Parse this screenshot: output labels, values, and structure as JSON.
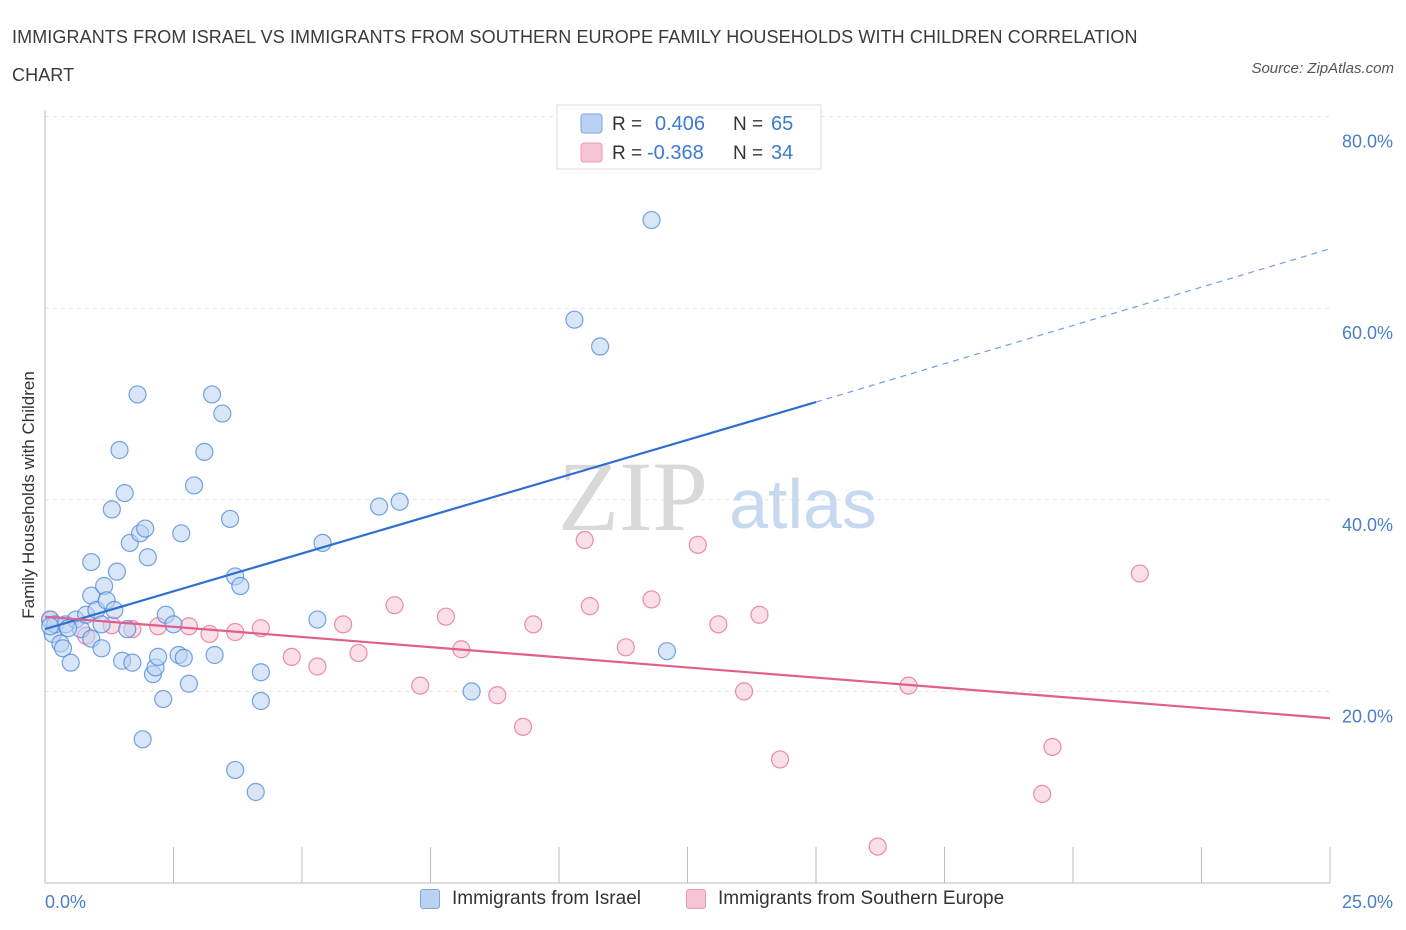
{
  "title": "IMMIGRANTS FROM ISRAEL VS IMMIGRANTS FROM SOUTHERN EUROPE FAMILY HOUSEHOLDS WITH CHILDREN CORRELATION CHART",
  "source": "Source: ZipAtlas.com",
  "watermark": {
    "zip": "ZIP",
    "atlas": "atlas"
  },
  "chart_data": {
    "type": "scatter",
    "title": "IMMIGRANTS FROM ISRAEL VS IMMIGRANTS FROM SOUTHERN EUROPE FAMILY HOUSEHOLDS WITH CHILDREN CORRELATION CHART",
    "xlabel": "",
    "ylabel": "Family Households with Children",
    "xlim": [
      0,
      25
    ],
    "ylim": [
      0,
      80
    ],
    "x_tick_labels": [
      "0.0%",
      "25.0%"
    ],
    "y_ticks": [
      20,
      40,
      60,
      80
    ],
    "y_tick_labels": [
      "20.0%",
      "40.0%",
      "60.0%",
      "80.0%"
    ],
    "grid": true,
    "legend_position": "top-center",
    "stats": [
      {
        "r_label": "R =",
        "r_value": "0.406",
        "n_label": "N =",
        "n_value": "65"
      },
      {
        "r_label": "R =",
        "r_value": "-0.368",
        "n_label": "N =",
        "n_value": "34"
      }
    ],
    "series": [
      {
        "name": "Immigrants from Israel",
        "color": "#4a86d8",
        "fill": "#b9d2f2",
        "trend": {
          "x1": 0,
          "y1": 26.5,
          "x2": 15,
          "y2": 50.2,
          "dash_x2": 25,
          "dash_y2": 66.2
        },
        "points": [
          [
            0.1,
            27.5
          ],
          [
            0.15,
            26
          ],
          [
            0.2,
            27
          ],
          [
            0.3,
            25
          ],
          [
            0.35,
            24.5
          ],
          [
            0.4,
            27
          ],
          [
            0.5,
            23
          ],
          [
            0.6,
            27.5
          ],
          [
            0.7,
            26.5
          ],
          [
            0.8,
            28
          ],
          [
            0.9,
            30
          ],
          [
            0.9,
            25.5
          ],
          [
            0.9,
            33.5
          ],
          [
            1.0,
            28.5
          ],
          [
            1.1,
            27
          ],
          [
            1.1,
            24.5
          ],
          [
            1.15,
            31
          ],
          [
            1.2,
            29.5
          ],
          [
            1.3,
            39
          ],
          [
            1.35,
            28.5
          ],
          [
            1.4,
            32.5
          ],
          [
            1.45,
            45.2
          ],
          [
            1.5,
            23.2
          ],
          [
            1.55,
            40.7
          ],
          [
            1.6,
            26.5
          ],
          [
            1.65,
            35.5
          ],
          [
            1.7,
            23
          ],
          [
            1.8,
            51
          ],
          [
            1.85,
            36.5
          ],
          [
            1.9,
            15
          ],
          [
            1.95,
            37
          ],
          [
            2.0,
            34
          ],
          [
            2.1,
            21.8
          ],
          [
            2.15,
            22.5
          ],
          [
            2.2,
            23.6
          ],
          [
            2.3,
            19.2
          ],
          [
            2.35,
            28
          ],
          [
            2.5,
            27
          ],
          [
            2.6,
            23.8
          ],
          [
            2.65,
            36.5
          ],
          [
            2.7,
            23.5
          ],
          [
            2.8,
            20.8
          ],
          [
            2.9,
            41.5
          ],
          [
            3.1,
            45
          ],
          [
            3.25,
            51
          ],
          [
            3.3,
            23.8
          ],
          [
            3.45,
            49
          ],
          [
            3.6,
            38
          ],
          [
            3.7,
            32
          ],
          [
            3.7,
            11.8
          ],
          [
            3.8,
            31
          ],
          [
            4.1,
            9.5
          ],
          [
            4.2,
            19
          ],
          [
            4.2,
            22
          ],
          [
            5.3,
            27.5
          ],
          [
            5.4,
            35.5
          ],
          [
            6.5,
            39.3
          ],
          [
            6.9,
            39.8
          ],
          [
            8.3,
            20
          ],
          [
            10.3,
            58.8
          ],
          [
            10.8,
            56
          ],
          [
            11.8,
            69.2
          ],
          [
            12.1,
            24.2
          ],
          [
            0.1,
            26.8
          ],
          [
            0.45,
            26.6
          ]
        ]
      },
      {
        "name": "Immigrants from Southern Europe",
        "color": "#e46a96",
        "fill": "#f6c4d4",
        "trend": {
          "x1": 0,
          "y1": 27.8,
          "x2": 25,
          "y2": 17.2
        },
        "points": [
          [
            0.1,
            27.5
          ],
          [
            0.8,
            25.8
          ],
          [
            1.3,
            26.9
          ],
          [
            1.7,
            26.5
          ],
          [
            2.2,
            26.8
          ],
          [
            2.8,
            26.8
          ],
          [
            3.2,
            26
          ],
          [
            3.7,
            26.2
          ],
          [
            4.2,
            26.6
          ],
          [
            4.8,
            23.6
          ],
          [
            5.3,
            22.6
          ],
          [
            5.8,
            27
          ],
          [
            6.1,
            24
          ],
          [
            6.8,
            29
          ],
          [
            7.3,
            20.6
          ],
          [
            7.8,
            27.8
          ],
          [
            8.1,
            24.4
          ],
          [
            8.8,
            19.6
          ],
          [
            9.3,
            16.3
          ],
          [
            9.5,
            27
          ],
          [
            10.5,
            35.8
          ],
          [
            10.6,
            28.9
          ],
          [
            11.3,
            24.6
          ],
          [
            11.8,
            29.6
          ],
          [
            12.7,
            35.3
          ],
          [
            13.1,
            27
          ],
          [
            13.6,
            20
          ],
          [
            13.9,
            28
          ],
          [
            14.3,
            12.9
          ],
          [
            16.2,
            3.8
          ],
          [
            16.8,
            20.6
          ],
          [
            19.4,
            9.3
          ],
          [
            19.6,
            14.2
          ],
          [
            21.3,
            32.3
          ]
        ]
      }
    ]
  }
}
